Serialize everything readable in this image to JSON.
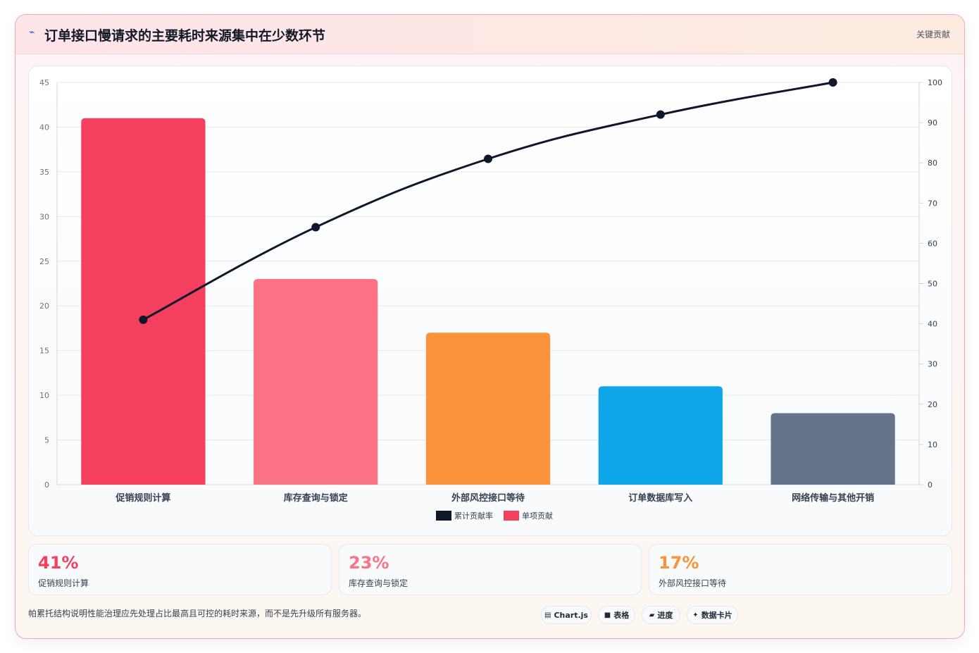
{
  "header": {
    "icon": "lightning-icon",
    "title": "订单接口慢请求的主要耗时来源集中在少数环节",
    "tag": "关键贡献"
  },
  "chart_data": {
    "type": "bar",
    "categories": [
      "促销规则计算",
      "库存查询与锁定",
      "外部风控接口等待",
      "订单数据库写入",
      "网络传输与其他开销"
    ],
    "series": [
      {
        "name": "单项贡献",
        "type": "bar",
        "axis": "left",
        "values": [
          41,
          23,
          17,
          11,
          8
        ],
        "colors": [
          "#f43f5e",
          "#fb7185",
          "#fb923c",
          "#0ea5e9",
          "#64748b"
        ]
      },
      {
        "name": "累计贡献率",
        "type": "line",
        "axis": "right",
        "values": [
          41,
          64,
          81,
          92,
          100
        ],
        "color": "#0f172a"
      }
    ],
    "ylim_left": [
      0,
      45
    ],
    "yticks_left": [
      0,
      5,
      10,
      15,
      20,
      25,
      30,
      35,
      40,
      45
    ],
    "ylim_right": [
      0,
      100
    ],
    "yticks_right": [
      0,
      10,
      20,
      30,
      40,
      50,
      60,
      70,
      80,
      90,
      100
    ],
    "legend": {
      "position": "bottom",
      "items": [
        {
          "label": "累计贡献率",
          "color": "#0f172a"
        },
        {
          "label": "单项贡献",
          "color": "#f43f5e"
        }
      ]
    },
    "grid": true
  },
  "stats": [
    {
      "value": "41%",
      "label": "促销规则计算",
      "color": "#f43f5e"
    },
    {
      "value": "23%",
      "label": "库存查询与锁定",
      "color": "#fb7185"
    },
    {
      "value": "17%",
      "label": "外部风控接口等待",
      "color": "#fb923c"
    }
  ],
  "footer": {
    "note": "帕累托结构说明性能治理应先处理占比最高且可控的耗时来源，而不是先升级所有服务器。",
    "chips": [
      {
        "icon": "chart-icon",
        "glyph": "▤",
        "label": "Chart.js"
      },
      {
        "icon": "table-icon",
        "glyph": "■",
        "label": "表格"
      },
      {
        "icon": "progress-icon",
        "glyph": "▰",
        "label": "进度"
      },
      {
        "icon": "sparkle-icon",
        "glyph": "✦",
        "label": "数据卡片"
      }
    ]
  }
}
